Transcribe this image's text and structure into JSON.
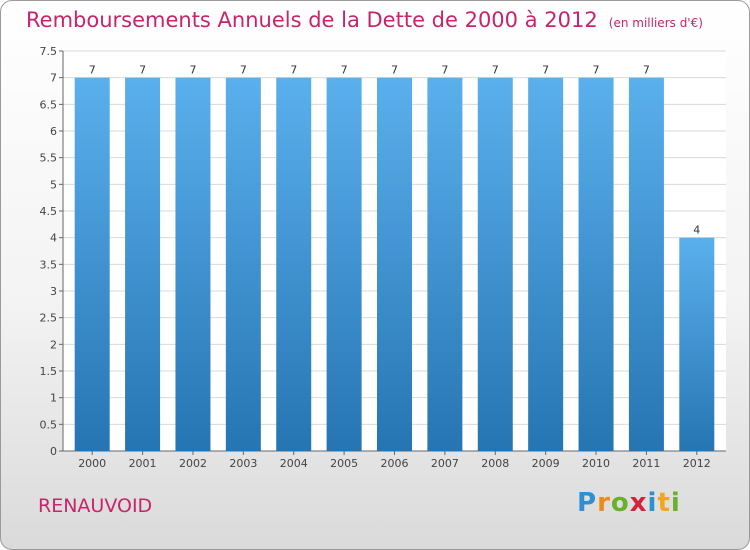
{
  "header": {
    "title": "Remboursements Annuels de la Dette de 2000 à 2012",
    "subtitle": "(en milliers d'€)"
  },
  "footer": {
    "town": "RENAUVOID",
    "logo_letters": [
      "P",
      "r",
      "o",
      "x",
      "i",
      "t",
      "i"
    ]
  },
  "colors": {
    "title": "#c8246b",
    "bar_top": "#5ab0ec",
    "bar_bottom": "#2675b3",
    "grid": "#d9d9d9"
  },
  "chart_data": {
    "type": "bar",
    "title": "Remboursements Annuels de la Dette de 2000 à 2012",
    "categories": [
      "2000",
      "2001",
      "2002",
      "2003",
      "2004",
      "2005",
      "2006",
      "2007",
      "2008",
      "2009",
      "2010",
      "2011",
      "2012"
    ],
    "values": [
      7,
      7,
      7,
      7,
      7,
      7,
      7,
      7,
      7,
      7,
      7,
      7,
      4
    ],
    "data_labels": [
      "7",
      "7",
      "7",
      "7",
      "7",
      "7",
      "7",
      "7",
      "7",
      "7",
      "7",
      "7",
      "4"
    ],
    "ylim": [
      0,
      7.5
    ],
    "yticks": [
      0,
      0.5,
      1,
      1.5,
      2,
      2.5,
      3,
      3.5,
      4,
      4.5,
      5,
      5.5,
      6,
      6.5,
      7,
      7.5
    ],
    "ytick_labels": [
      "0",
      "0.5",
      "1",
      "1.5",
      "2",
      "2.5",
      "3",
      "3.5",
      "4",
      "4.5",
      "5",
      "5.5",
      "6",
      "6.5",
      "7",
      "7.5"
    ],
    "grid": true
  }
}
